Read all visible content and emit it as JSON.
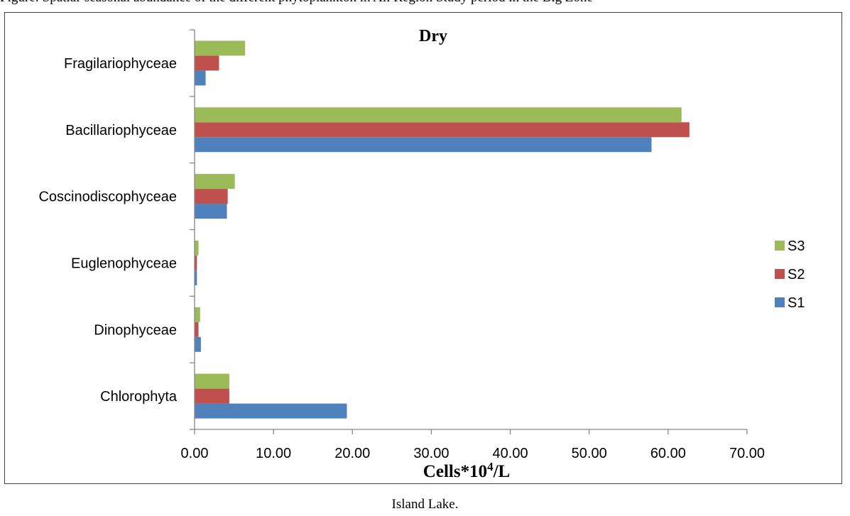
{
  "page": {
    "top_caption": "Figure: Spatial-seasonal abundance of the different phytoplankton in Ali Region Study period in the Big Zone",
    "bottom_caption": "Island Lake."
  },
  "chart_data": {
    "type": "bar",
    "orientation": "horizontal",
    "title": "Dry",
    "xlabel_main": "Cells*10",
    "xlabel_sup": "4",
    "xlabel_tail": "/L",
    "categories": [
      "Chlorophyta",
      "Dinophyceae",
      "Euglenophyceae",
      "Coscinodiscophyceae",
      "Bacillariophyceae",
      "Fragilariophyceae"
    ],
    "series": [
      {
        "name": "S1",
        "color": "#4F81BD",
        "values": [
          19.3,
          0.8,
          0.3,
          4.1,
          57.9,
          1.4
        ]
      },
      {
        "name": "S2",
        "color": "#C0504D",
        "values": [
          4.4,
          0.5,
          0.3,
          4.2,
          62.7,
          3.1
        ]
      },
      {
        "name": "S3",
        "color": "#9BBB59",
        "values": [
          4.4,
          0.7,
          0.5,
          5.1,
          61.7,
          6.4
        ]
      }
    ],
    "xlim": [
      0,
      70
    ],
    "xticks": [
      0,
      10,
      20,
      30,
      40,
      50,
      60,
      70
    ],
    "xtick_labels": [
      "0.00",
      "10.00",
      "20.00",
      "30.00",
      "40.00",
      "50.00",
      "60.00",
      "70.00"
    ],
    "legend_position": "right",
    "grid": false
  }
}
